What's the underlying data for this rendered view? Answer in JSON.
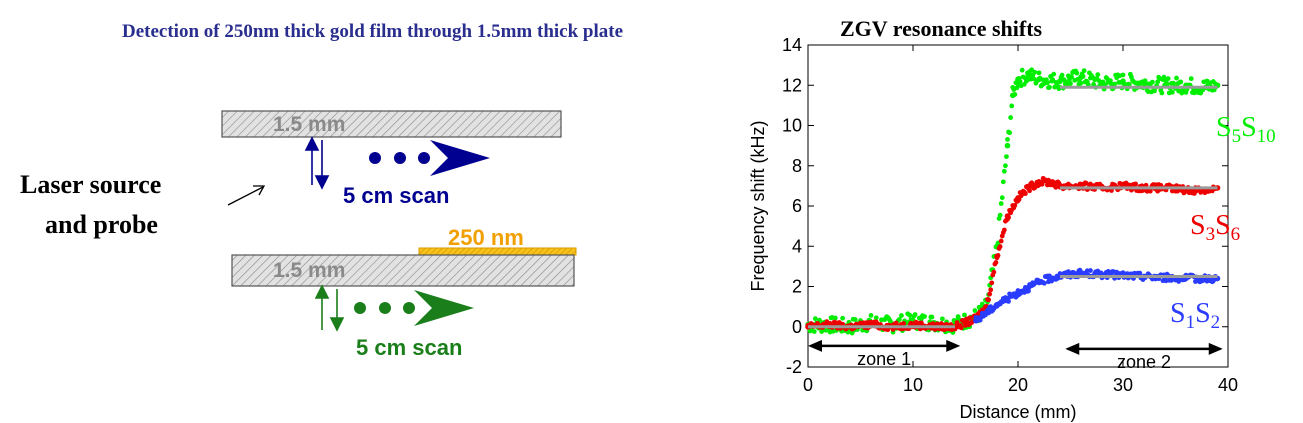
{
  "diagram": {
    "title": "Detection of  250nm thick gold  film through 1.5mm thick plate",
    "laser_label_line1": "Laser source",
    "laser_label_line2": "and probe",
    "plate_top_label": "1.5 mm",
    "plate_bottom_label": "1.5 mm",
    "scan_top_label": "5 cm scan",
    "scan_bottom_label": "5 cm scan",
    "film_label": "250 nm",
    "colors": {
      "title": "#2a2f8f",
      "scan_top": "#000090",
      "scan_bottom": "#1a7f1a",
      "film": "#f2a000",
      "plate_label": "#888888"
    }
  },
  "chart_data": {
    "type": "scatter",
    "title": "ZGV  resonance shifts",
    "xlabel": "Distance (mm)",
    "ylabel": "Frequency shift (kHz)",
    "xlim": [
      0,
      40
    ],
    "ylim": [
      -2,
      14
    ],
    "xticks": [
      "0",
      "10",
      "20",
      "30",
      "40"
    ],
    "yticks": [
      "-2",
      "0",
      "2",
      "4",
      "6",
      "8",
      "10",
      "12",
      "14"
    ],
    "grid": false,
    "series": [
      {
        "color": "#00ee00",
        "label": {
          "main": "S",
          "sub1": "5",
          "mid": "S",
          "sub2": "10"
        },
        "x": [
          0,
          2,
          4,
          6,
          8,
          10,
          12,
          14,
          16,
          17,
          18,
          19,
          19.5,
          20,
          21,
          22,
          24,
          26,
          28,
          30,
          32,
          34,
          36,
          38,
          39
        ],
        "y": [
          0.1,
          0.1,
          0.0,
          0.2,
          0.1,
          0.3,
          0.2,
          0.1,
          0.5,
          1.0,
          4.0,
          9.0,
          11.5,
          12.3,
          12.5,
          12.3,
          12.2,
          12.4,
          12.1,
          12.2,
          12.1,
          12.0,
          12.0,
          11.9,
          12.0
        ],
        "fit": {
          "x": [
            24,
            39
          ],
          "y": 11.9
        }
      },
      {
        "color": "#ee0000",
        "label": {
          "main": "S",
          "sub1": "3",
          "mid": "S",
          "sub2": "6"
        },
        "x": [
          0,
          2,
          4,
          6,
          8,
          10,
          12,
          14,
          15,
          16,
          17,
          18,
          19,
          20,
          21,
          22,
          23,
          24,
          26,
          28,
          30,
          32,
          34,
          36,
          38,
          39
        ],
        "y": [
          0.0,
          0.1,
          0.0,
          0.1,
          0.0,
          0.1,
          0.0,
          0.0,
          0.2,
          0.4,
          1.0,
          3.5,
          5.5,
          6.4,
          6.9,
          7.2,
          7.2,
          7.0,
          7.0,
          6.9,
          7.0,
          6.9,
          6.9,
          6.8,
          6.8,
          6.9
        ],
        "fit": {
          "x": [
            24,
            39
          ],
          "y": 6.9
        }
      },
      {
        "color": "#2a3cff",
        "label": {
          "main": "S",
          "sub1": "1",
          "mid": "S",
          "sub2": "2"
        },
        "x": [
          16,
          17,
          18,
          19,
          20,
          21,
          22,
          23,
          24,
          25,
          26,
          28,
          30,
          32,
          34,
          36,
          38,
          39
        ],
        "y": [
          0.3,
          0.7,
          1.1,
          1.4,
          1.7,
          1.95,
          2.2,
          2.4,
          2.55,
          2.6,
          2.65,
          2.6,
          2.55,
          2.5,
          2.45,
          2.4,
          2.4,
          2.4
        ],
        "fit": {
          "x": [
            24,
            39
          ],
          "y": 2.5
        }
      }
    ],
    "annotations": [
      {
        "text": "zone 1",
        "x_from": 0,
        "x_to": 14.5,
        "y": -0.95
      },
      {
        "text": "zone 2",
        "x_from": 24.5,
        "x_to": 39.5,
        "y": -1.1
      }
    ]
  }
}
